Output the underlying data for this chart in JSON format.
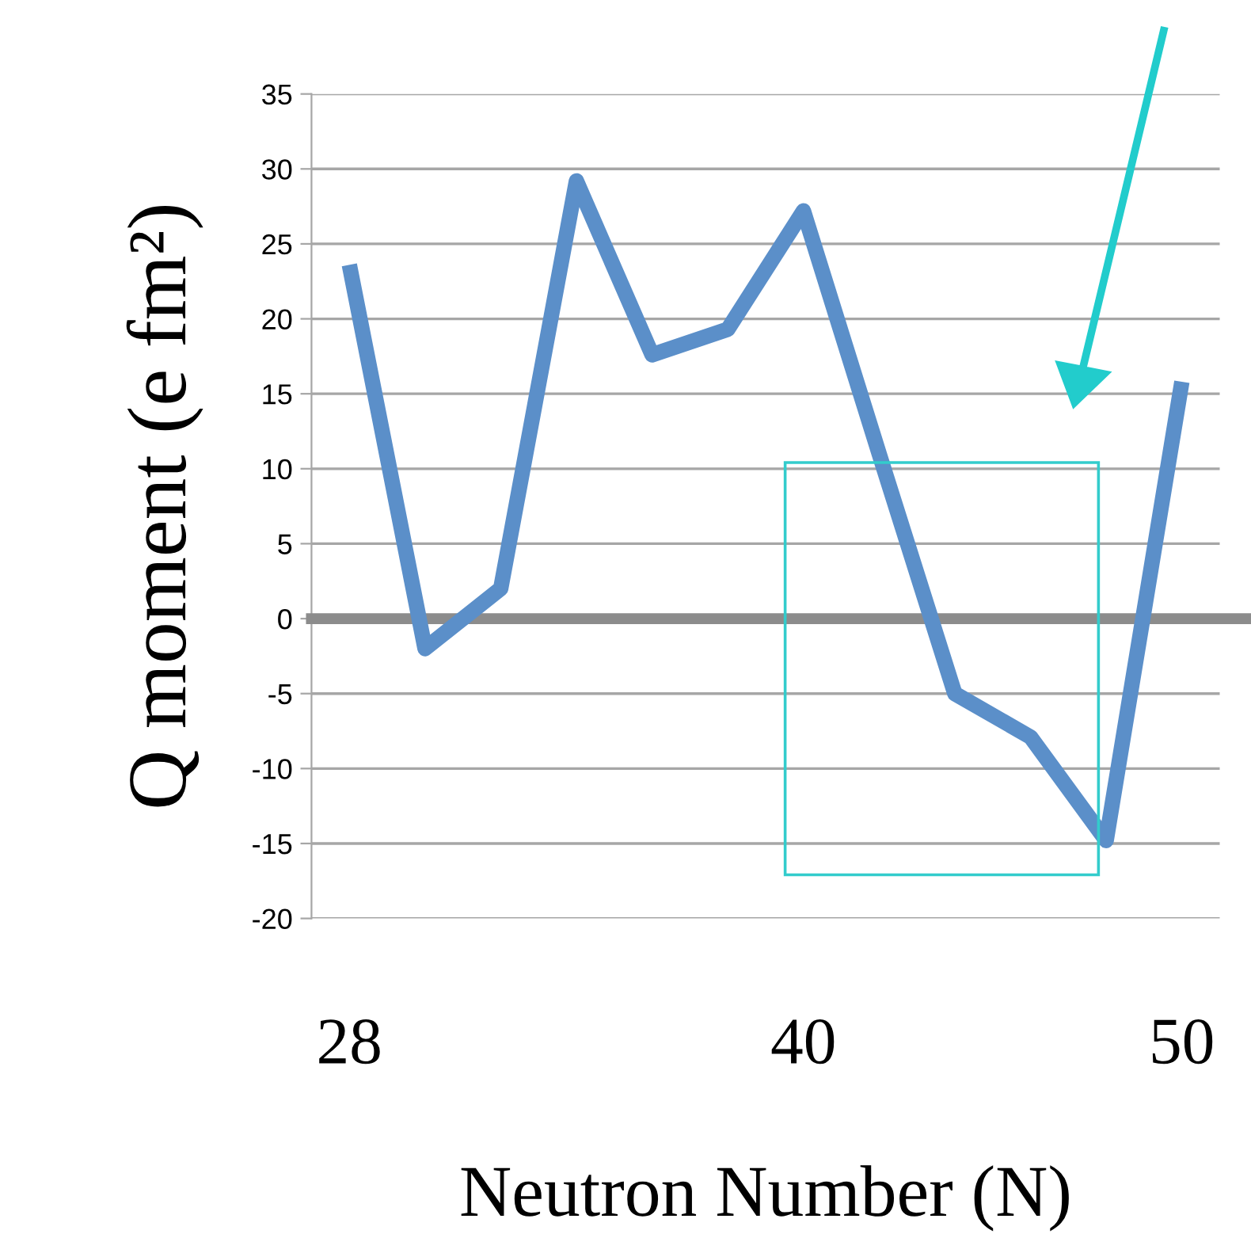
{
  "chart_data": {
    "type": "line",
    "xlabel": "Neutron Number (N)",
    "ylabel": "Q moment (e fm²)",
    "x": [
      28,
      30,
      32,
      34,
      36,
      38,
      40,
      42,
      44,
      46,
      48,
      50
    ],
    "series": [
      {
        "color": "#5b8fc9",
        "values": [
          23.6,
          -2,
          2,
          29.2,
          17.6,
          19.3,
          27.2,
          11,
          -5,
          -7.9,
          -14.8,
          15.8
        ]
      }
    ],
    "xlim": [
      27,
      51
    ],
    "xticks": [
      28,
      40,
      50
    ],
    "ylim": [
      -20,
      35
    ],
    "yticks": [
      -20,
      -15,
      -10,
      -5,
      0,
      5,
      10,
      15,
      20,
      25,
      30,
      35
    ],
    "ref_lines": [
      {
        "axis": "y",
        "value": 0,
        "color": "#8c8c8c"
      }
    ],
    "grid": "y",
    "legend": false,
    "marker": "none",
    "line_style": "solid"
  }
}
